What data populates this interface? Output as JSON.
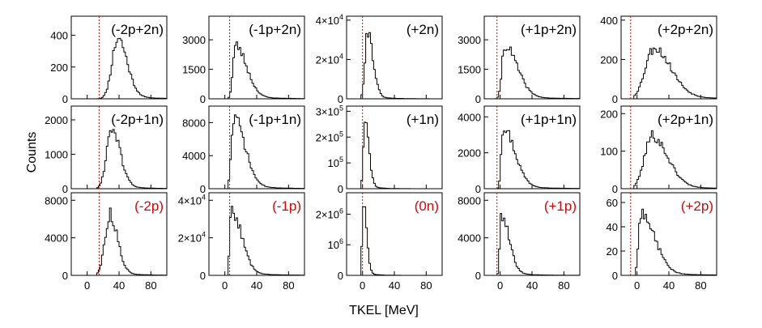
{
  "figure": {
    "xlabel": "TKEL [MeV]",
    "ylabel": "Counts",
    "xlim": [
      -20,
      100
    ],
    "xticks": [
      0,
      40,
      80
    ],
    "colors": {
      "line": "#000000",
      "dash": "#e00000",
      "label_black": "#000000",
      "label_red": "#e00000"
    }
  },
  "chart_data": [
    {
      "type": "histogram",
      "label": "(-2p+2n)",
      "label_color": "black",
      "cutoff": 15,
      "ylim": [
        0,
        520
      ],
      "yticks": [
        {
          "v": 0,
          "t": "0"
        },
        {
          "v": 200,
          "t": "200"
        },
        {
          "v": 400,
          "t": "400"
        }
      ],
      "peak": 38,
      "rise": 7,
      "fall": 12,
      "ymax": 370,
      "floor_x": 12,
      "seed": 11
    },
    {
      "type": "histogram",
      "label": "(-1p+2n)",
      "label_color": "black",
      "cutoff": 6,
      "ylim": [
        0,
        4200
      ],
      "yticks": [
        {
          "v": 0,
          "t": "0"
        },
        {
          "v": 1500,
          "t": "1500"
        },
        {
          "v": 3000,
          "t": "3000"
        }
      ],
      "peak": 13,
      "rise": 3,
      "fall": 14,
      "ymax": 2600,
      "floor_x": 5,
      "seed": 23
    },
    {
      "type": "histogram",
      "label": "(+2n)",
      "label_color": "black",
      "cutoff": 0,
      "ylim": [
        0,
        42000
      ],
      "yticks": [
        {
          "v": 0,
          "t": "0"
        },
        {
          "v": 20000,
          "t": "2×10",
          "sup": "4"
        },
        {
          "v": 40000,
          "t": "4×10",
          "sup": "4"
        }
      ],
      "peak": 6,
      "rise": 3,
      "fall": 7,
      "ymax": 33000,
      "floor_x": -2,
      "seed": 31
    },
    {
      "type": "histogram",
      "label": "(+1p+2n)",
      "label_color": "black",
      "cutoff": -4,
      "ylim": [
        0,
        4200
      ],
      "yticks": [
        {
          "v": 0,
          "t": "0"
        },
        {
          "v": 1500,
          "t": "1500"
        },
        {
          "v": 3000,
          "t": "3000"
        }
      ],
      "peak": 5,
      "rise": 3,
      "fall": 16,
      "ymax": 2600,
      "floor_x": -5,
      "seed": 41
    },
    {
      "type": "histogram",
      "label": "(+2p+2n)",
      "label_color": "black",
      "cutoff": -8,
      "ylim": [
        0,
        420
      ],
      "yticks": [
        {
          "v": 0,
          "t": "0"
        },
        {
          "v": 200,
          "t": "200"
        },
        {
          "v": 400,
          "t": "400"
        }
      ],
      "peak": 20,
      "rise": 10,
      "fall": 22,
      "ymax": 250,
      "floor_x": -4,
      "seed": 53
    },
    {
      "type": "histogram",
      "label": "(-2p+1n)",
      "label_color": "black",
      "cutoff": 15,
      "ylim": [
        0,
        2400
      ],
      "yticks": [
        {
          "v": 0,
          "t": "0"
        },
        {
          "v": 1000,
          "t": "1000"
        },
        {
          "v": 2000,
          "t": "2000"
        }
      ],
      "peak": 30,
      "rise": 6,
      "fall": 11,
      "ymax": 1700,
      "floor_x": 12,
      "seed": 61
    },
    {
      "type": "histogram",
      "label": "(-1p+1n)",
      "label_color": "black",
      "cutoff": 6,
      "ylim": [
        0,
        10000
      ],
      "yticks": [
        {
          "v": 0,
          "t": "0"
        },
        {
          "v": 4000,
          "t": "4000"
        },
        {
          "v": 8000,
          "t": "8000"
        }
      ],
      "peak": 11,
      "rise": 3,
      "fall": 14,
      "ymax": 8200,
      "floor_x": 5,
      "seed": 71
    },
    {
      "type": "histogram",
      "label": "(+1n)",
      "label_color": "black",
      "cutoff": 0,
      "ylim": [
        0,
        320000
      ],
      "yticks": [
        {
          "v": 0,
          "t": "0"
        },
        {
          "v": 100000,
          "t": "10",
          "sup": "5"
        },
        {
          "v": 200000,
          "t": "2×10",
          "sup": "5"
        },
        {
          "v": 300000,
          "t": "3×10",
          "sup": "5"
        }
      ],
      "peak": 3,
      "rise": 2,
      "fall": 5,
      "ymax": 250000,
      "floor_x": -2,
      "seed": 83
    },
    {
      "type": "histogram",
      "label": "(+1p+1n)",
      "label_color": "black",
      "cutoff": -4,
      "ylim": [
        0,
        4600
      ],
      "yticks": [
        {
          "v": 0,
          "t": "0"
        },
        {
          "v": 2000,
          "t": "2000"
        },
        {
          "v": 4000,
          "t": "4000"
        }
      ],
      "peak": 3,
      "rise": 2,
      "fall": 15,
      "ymax": 3300,
      "floor_x": -5,
      "seed": 97
    },
    {
      "type": "histogram",
      "label": "(+2p+1n)",
      "label_color": "black",
      "cutoff": -8,
      "ylim": [
        0,
        220
      ],
      "yticks": [
        {
          "v": 0,
          "t": "0"
        },
        {
          "v": 100,
          "t": "100"
        },
        {
          "v": 200,
          "t": "200"
        }
      ],
      "peak": 18,
      "rise": 9,
      "fall": 20,
      "ymax": 135,
      "floor_x": -4,
      "seed": 101
    },
    {
      "type": "histogram",
      "label": "(-2p)",
      "label_color": "red",
      "cutoff": 15,
      "ylim": [
        0,
        8800
      ],
      "yticks": [
        {
          "v": 0,
          "t": "0"
        },
        {
          "v": 4000,
          "t": "4000"
        },
        {
          "v": 8000,
          "t": "8000"
        }
      ],
      "peak": 28,
      "rise": 6,
      "fall": 10,
      "ymax": 6200,
      "floor_x": 12,
      "seed": 113
    },
    {
      "type": "histogram",
      "label": "(-1p)",
      "label_color": "red",
      "cutoff": 6,
      "ylim": [
        0,
        44000
      ],
      "yticks": [
        {
          "v": 0,
          "t": "0"
        },
        {
          "v": 20000,
          "t": "2×10",
          "sup": "4"
        },
        {
          "v": 40000,
          "t": "4×10",
          "sup": "4"
        }
      ],
      "peak": 8,
      "rise": 2,
      "fall": 13,
      "ymax": 33000,
      "floor_x": 5,
      "seed": 127
    },
    {
      "type": "histogram",
      "label": "(0n)",
      "label_color": "red",
      "cutoff": 0,
      "ylim": [
        0,
        2700000
      ],
      "yticks": [
        {
          "v": 0,
          "t": "0"
        },
        {
          "v": 1000000,
          "t": "10",
          "sup": "6"
        },
        {
          "v": 2000000,
          "t": "2×10",
          "sup": "6"
        }
      ],
      "peak": 1,
      "rise": 1.5,
      "fall": 4,
      "ymax": 2400000,
      "floor_x": -2,
      "seed": 131
    },
    {
      "type": "histogram",
      "label": "(+1p)",
      "label_color": "red",
      "cutoff": -4,
      "ylim": [
        0,
        8800
      ],
      "yticks": [
        {
          "v": 0,
          "t": "0"
        },
        {
          "v": 4000,
          "t": "4000"
        },
        {
          "v": 8000,
          "t": "8000"
        }
      ],
      "peak": 1,
      "rise": 1.5,
      "fall": 10,
      "ymax": 6200,
      "floor_x": -5,
      "seed": 139
    },
    {
      "type": "histogram",
      "label": "(+2p)",
      "label_color": "red",
      "cutoff": -8,
      "ylim": [
        0,
        68
      ],
      "yticks": [
        {
          "v": 0,
          "t": "0"
        },
        {
          "v": 20,
          "t": "20"
        },
        {
          "v": 40,
          "t": "40"
        },
        {
          "v": 60,
          "t": "60"
        }
      ],
      "peak": 5,
      "rise": 3,
      "fall": 17,
      "ymax": 50,
      "floor_x": -2,
      "seed": 149
    }
  ]
}
